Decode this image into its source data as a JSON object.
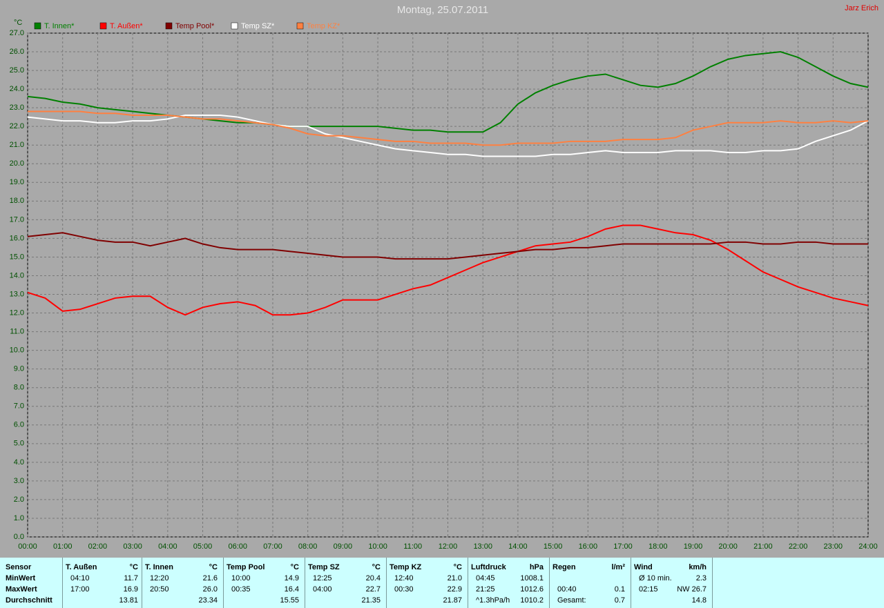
{
  "chart_data": {
    "type": "line",
    "title": "Montag, 25.07.2011",
    "author": "Jarz Erich",
    "y_unit": "°C",
    "x": [
      0,
      0.5,
      1,
      1.5,
      2,
      2.5,
      3,
      3.5,
      4,
      4.5,
      5,
      5.5,
      6,
      6.5,
      7,
      7.5,
      8,
      8.5,
      9,
      9.5,
      10,
      10.5,
      11,
      11.5,
      12,
      12.5,
      13,
      13.5,
      14,
      14.5,
      15,
      15.5,
      16,
      16.5,
      17,
      17.5,
      18,
      18.5,
      19,
      19.5,
      20,
      20.5,
      21,
      21.5,
      22,
      22.5,
      23,
      23.5,
      24
    ],
    "xlim": [
      0,
      24
    ],
    "xticks": [
      {
        "value": 0,
        "label": "00:00"
      },
      {
        "value": 1,
        "label": "01:00"
      },
      {
        "value": 2,
        "label": "02:00"
      },
      {
        "value": 3,
        "label": "03:00"
      },
      {
        "value": 4,
        "label": "04:00"
      },
      {
        "value": 5,
        "label": "05:00"
      },
      {
        "value": 6,
        "label": "06:00"
      },
      {
        "value": 7,
        "label": "07:00"
      },
      {
        "value": 8,
        "label": "08:00"
      },
      {
        "value": 9,
        "label": "09:00"
      },
      {
        "value": 10,
        "label": "10:00"
      },
      {
        "value": 11,
        "label": "11:00"
      },
      {
        "value": 12,
        "label": "12:00"
      },
      {
        "value": 13,
        "label": "13:00"
      },
      {
        "value": 14,
        "label": "14:00"
      },
      {
        "value": 15,
        "label": "15:00"
      },
      {
        "value": 16,
        "label": "16:00"
      },
      {
        "value": 17,
        "label": "17:00"
      },
      {
        "value": 18,
        "label": "18:00"
      },
      {
        "value": 19,
        "label": "19:00"
      },
      {
        "value": 20,
        "label": "20:00"
      },
      {
        "value": 21,
        "label": "21:00"
      },
      {
        "value": 22,
        "label": "22:00"
      },
      {
        "value": 23,
        "label": "23:00"
      },
      {
        "value": 24,
        "label": "24:00"
      }
    ],
    "ylim": [
      0,
      27
    ],
    "yticks": [
      {
        "value": 0,
        "label": "0.0"
      },
      {
        "value": 1,
        "label": "1.0"
      },
      {
        "value": 2,
        "label": "2.0"
      },
      {
        "value": 3,
        "label": "3.0"
      },
      {
        "value": 4,
        "label": "4.0"
      },
      {
        "value": 5,
        "label": "5.0"
      },
      {
        "value": 6,
        "label": "6.0"
      },
      {
        "value": 7,
        "label": "7.0"
      },
      {
        "value": 8,
        "label": "8.0"
      },
      {
        "value": 9,
        "label": "9.0"
      },
      {
        "value": 10,
        "label": "10.0"
      },
      {
        "value": 11,
        "label": "11.0"
      },
      {
        "value": 12,
        "label": "12.0"
      },
      {
        "value": 13,
        "label": "13.0"
      },
      {
        "value": 14,
        "label": "14.0"
      },
      {
        "value": 15,
        "label": "15.0"
      },
      {
        "value": 16,
        "label": "16.0"
      },
      {
        "value": 17,
        "label": "17.0"
      },
      {
        "value": 18,
        "label": "18.0"
      },
      {
        "value": 19,
        "label": "19.0"
      },
      {
        "value": 20,
        "label": "20.0"
      },
      {
        "value": 21,
        "label": "21.0"
      },
      {
        "value": 22,
        "label": "22.0"
      },
      {
        "value": 23,
        "label": "23.0"
      },
      {
        "value": 24,
        "label": "24.0"
      },
      {
        "value": 25,
        "label": "25.0"
      },
      {
        "value": 26,
        "label": "26.0"
      },
      {
        "value": 27,
        "label": "27.0"
      }
    ],
    "grid": true,
    "series": [
      {
        "name": "T. Innen*",
        "color": "#008000",
        "values": [
          23.6,
          23.5,
          23.3,
          23.2,
          23.0,
          22.9,
          22.8,
          22.7,
          22.6,
          22.5,
          22.4,
          22.3,
          22.2,
          22.2,
          22.1,
          22.0,
          22.0,
          22.0,
          22.0,
          22.0,
          22.0,
          21.9,
          21.8,
          21.8,
          21.7,
          21.7,
          21.7,
          22.2,
          23.2,
          23.8,
          24.2,
          24.5,
          24.7,
          24.8,
          24.5,
          24.2,
          24.1,
          24.3,
          24.7,
          25.2,
          25.6,
          25.8,
          25.9,
          26.0,
          25.7,
          25.2,
          24.7,
          24.3,
          24.1
        ]
      },
      {
        "name": "T. Außen*",
        "color": "#ff0000",
        "values": [
          13.1,
          12.8,
          12.1,
          12.2,
          12.5,
          12.8,
          12.9,
          12.9,
          12.3,
          11.9,
          12.3,
          12.5,
          12.6,
          12.4,
          11.9,
          11.9,
          12.0,
          12.3,
          12.7,
          12.7,
          12.7,
          13.0,
          13.3,
          13.5,
          13.9,
          14.3,
          14.7,
          15.0,
          15.3,
          15.6,
          15.7,
          15.8,
          16.1,
          16.5,
          16.7,
          16.7,
          16.5,
          16.3,
          16.2,
          15.9,
          15.4,
          14.8,
          14.2,
          13.8,
          13.4,
          13.1,
          12.8,
          12.6,
          12.4
        ]
      },
      {
        "name": "Temp Pool*",
        "color": "#800000",
        "values": [
          16.1,
          16.2,
          16.3,
          16.1,
          15.9,
          15.8,
          15.8,
          15.6,
          15.8,
          16.0,
          15.7,
          15.5,
          15.4,
          15.4,
          15.4,
          15.3,
          15.2,
          15.1,
          15.0,
          15.0,
          15.0,
          14.9,
          14.9,
          14.9,
          14.9,
          15.0,
          15.1,
          15.2,
          15.3,
          15.4,
          15.4,
          15.5,
          15.5,
          15.6,
          15.7,
          15.7,
          15.7,
          15.7,
          15.7,
          15.7,
          15.8,
          15.8,
          15.7,
          15.7,
          15.8,
          15.8,
          15.7,
          15.7,
          15.7
        ]
      },
      {
        "name": "Temp SZ*",
        "color": "#ffffff",
        "values": [
          22.5,
          22.4,
          22.3,
          22.3,
          22.2,
          22.2,
          22.3,
          22.3,
          22.4,
          22.6,
          22.6,
          22.6,
          22.5,
          22.3,
          22.1,
          22.0,
          22.0,
          21.6,
          21.4,
          21.2,
          21.0,
          20.8,
          20.7,
          20.6,
          20.5,
          20.5,
          20.4,
          20.4,
          20.4,
          20.4,
          20.5,
          20.5,
          20.6,
          20.7,
          20.6,
          20.6,
          20.6,
          20.7,
          20.7,
          20.7,
          20.6,
          20.6,
          20.7,
          20.7,
          20.8,
          21.2,
          21.5,
          21.8,
          22.3
        ]
      },
      {
        "name": "Temp KZ*",
        "color": "#ff8040",
        "values": [
          22.8,
          22.8,
          22.8,
          22.8,
          22.7,
          22.7,
          22.6,
          22.6,
          22.6,
          22.5,
          22.4,
          22.4,
          22.3,
          22.2,
          22.1,
          21.9,
          21.6,
          21.5,
          21.5,
          21.4,
          21.3,
          21.2,
          21.2,
          21.1,
          21.1,
          21.1,
          21.0,
          21.0,
          21.1,
          21.1,
          21.1,
          21.2,
          21.2,
          21.2,
          21.3,
          21.3,
          21.3,
          21.4,
          21.8,
          22.0,
          22.2,
          22.2,
          22.2,
          22.3,
          22.2,
          22.2,
          22.3,
          22.2,
          22.3
        ]
      }
    ]
  },
  "table": {
    "columns": [
      {
        "name": "T. Außen",
        "unit": "°C"
      },
      {
        "name": "T. Innen",
        "unit": "°C"
      },
      {
        "name": "Temp Pool",
        "unit": "°C"
      },
      {
        "name": "Temp SZ",
        "unit": "°C"
      },
      {
        "name": "Temp KZ",
        "unit": "°C"
      },
      {
        "name": "Luftdruck",
        "unit": "hPa"
      },
      {
        "name": "Regen",
        "unit": "l/m²"
      },
      {
        "name": "Wind",
        "unit": "km/h"
      }
    ],
    "sensor_header": "Sensor",
    "rows": [
      {
        "label": "MinWert",
        "cells": [
          [
            "04:10",
            "11.7"
          ],
          [
            "12:20",
            "21.6"
          ],
          [
            "10:00",
            "14.9"
          ],
          [
            "12:25",
            "20.4"
          ],
          [
            "12:40",
            "21.0"
          ],
          [
            "04:45",
            "1008.1"
          ],
          [
            null,
            null
          ],
          [
            "Ø 10 min.",
            "2.3"
          ]
        ]
      },
      {
        "label": "MaxWert",
        "cells": [
          [
            "17:00",
            "16.9"
          ],
          [
            "20:50",
            "26.0"
          ],
          [
            "00:35",
            "16.4"
          ],
          [
            "04:00",
            "22.7"
          ],
          [
            "00:30",
            "22.9"
          ],
          [
            "21:25",
            "1012.6"
          ],
          [
            "00:40",
            "0.1"
          ],
          [
            "02:15",
            "NW 26.7"
          ]
        ]
      },
      {
        "label": "Durchschnitt",
        "cells": [
          [
            null,
            "13.81"
          ],
          [
            null,
            "23.34"
          ],
          [
            null,
            "15.55"
          ],
          [
            null,
            "21.35"
          ],
          [
            null,
            "21.87"
          ],
          [
            "^1.3hPa/h",
            "1010.2"
          ],
          [
            "Gesamt:",
            "0.7"
          ],
          [
            null,
            "14.8"
          ]
        ]
      }
    ]
  }
}
